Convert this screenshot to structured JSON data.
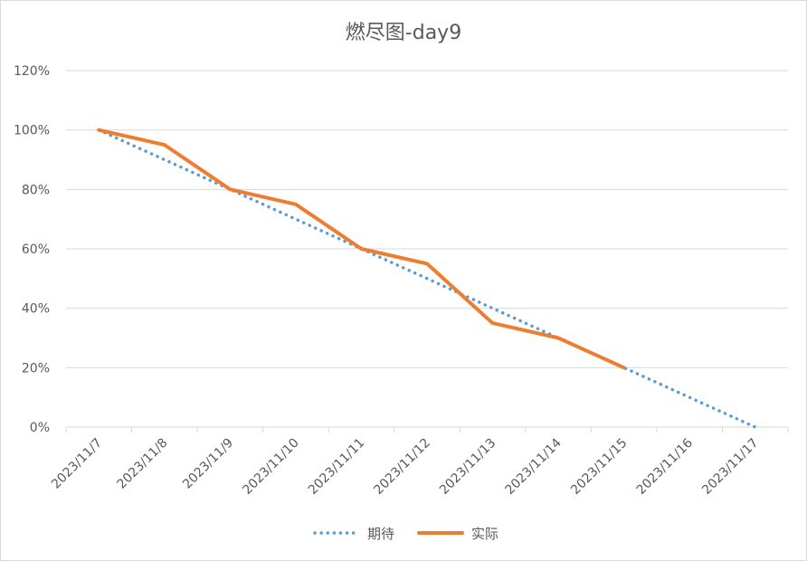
{
  "chart_data": {
    "type": "line",
    "title": "燃尽图-day9",
    "categories": [
      "2023/11/7",
      "2023/11/8",
      "2023/11/9",
      "2023/11/10",
      "2023/11/11",
      "2023/11/12",
      "2023/11/13",
      "2023/11/14",
      "2023/11/15",
      "2023/11/16",
      "2023/11/17"
    ],
    "y_ticks": [
      "0%",
      "20%",
      "40%",
      "60%",
      "80%",
      "100%",
      "120%"
    ],
    "ylim": [
      0,
      120
    ],
    "grid": true,
    "legend_position": "bottom",
    "series": [
      {
        "name": "期待",
        "style": "dotted",
        "color": "#5b9bd5",
        "values": [
          100,
          90,
          80,
          70,
          60,
          50,
          40,
          30,
          20,
          10,
          0
        ]
      },
      {
        "name": "实际",
        "style": "solid",
        "color": "#ed7d31",
        "values": [
          100,
          95,
          80,
          75,
          60,
          55,
          35,
          30,
          20,
          null,
          null
        ]
      }
    ]
  }
}
